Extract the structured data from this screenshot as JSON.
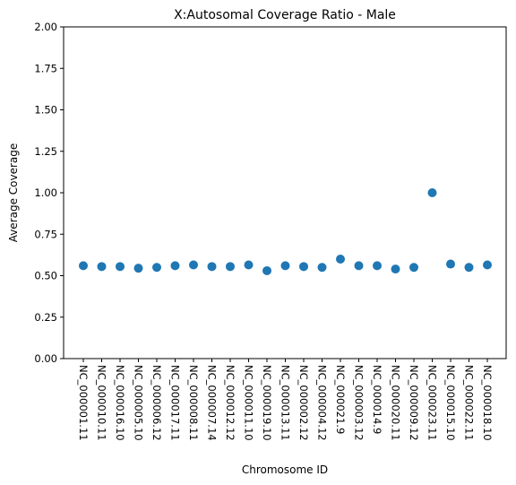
{
  "chart_data": {
    "type": "scatter",
    "title": "X:Autosomal Coverage Ratio - Male",
    "xlabel": "Chromosome ID",
    "ylabel": "Average Coverage",
    "ylim": [
      0,
      2
    ],
    "yticks": [
      "0.00",
      "0.25",
      "0.50",
      "0.75",
      "1.00",
      "1.25",
      "1.50",
      "1.75",
      "2.00"
    ],
    "grid": false,
    "color": "#1f77b4",
    "categories": [
      "NC_000001.11",
      "NC_000010.11",
      "NC_000016.10",
      "NC_000005.10",
      "NC_000006.12",
      "NC_000017.11",
      "NC_000008.11",
      "NC_000007.14",
      "NC_000012.12",
      "NC_000011.10",
      "NC_000019.10",
      "NC_000013.11",
      "NC_000002.12",
      "NC_000004.12",
      "NC_000021.9",
      "NC_000003.12",
      "NC_000014.9",
      "NC_000020.11",
      "NC_000009.12",
      "NC_000023.11",
      "NC_000015.10",
      "NC_000022.11",
      "NC_000018.10"
    ],
    "values": [
      0.56,
      0.555,
      0.555,
      0.545,
      0.55,
      0.56,
      0.565,
      0.555,
      0.555,
      0.565,
      0.53,
      0.56,
      0.555,
      0.55,
      0.6,
      0.56,
      0.56,
      0.54,
      0.55,
      1.0,
      0.57,
      0.55,
      0.565
    ]
  }
}
